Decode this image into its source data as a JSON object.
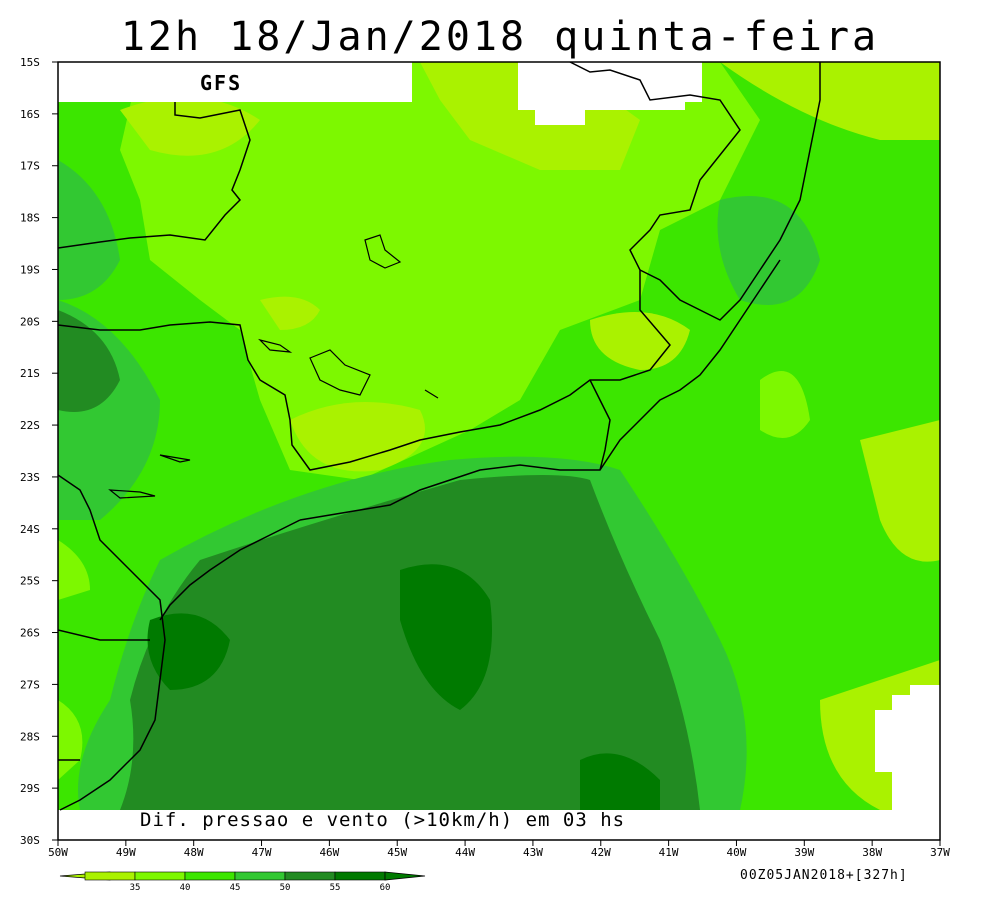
{
  "title": "12h 18/Jan/2018 quinta-feira",
  "model_label": "GFS",
  "caption": "Dif. pressao e vento (>10km/h) em 03 hs",
  "run_info": "00Z05JAN2018+[327h]",
  "map": {
    "lat_labels": [
      "15S",
      "16S",
      "17S",
      "18S",
      "19S",
      "20S",
      "21S",
      "22S",
      "23S",
      "24S",
      "25S",
      "26S",
      "27S",
      "28S",
      "29S",
      "30S"
    ],
    "lon_labels": [
      "50W",
      "49W",
      "48W",
      "47W",
      "46W",
      "45W",
      "44W",
      "43W",
      "42W",
      "41W",
      "40W",
      "39W",
      "38W",
      "37W"
    ]
  },
  "legend": {
    "labels": [
      "35",
      "40",
      "45",
      "50",
      "55",
      "60"
    ],
    "colors": [
      "#aaf200",
      "#7df800",
      "#3ce600",
      "#32c832",
      "#228b22",
      "#007a00"
    ]
  }
}
